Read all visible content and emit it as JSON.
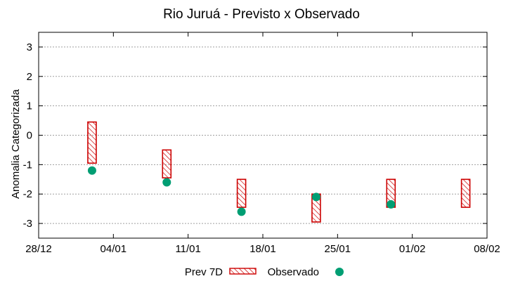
{
  "chart_data": {
    "type": "floating-bar-with-points",
    "title": "Rio Juruá - Previsto x Observado",
    "ylabel": "Anomalia Categorizada",
    "xlabel": "",
    "ylim": [
      -3.5,
      3.5
    ],
    "yticks": [
      -3,
      -2,
      -1,
      0,
      1,
      2,
      3
    ],
    "ytick_labels": [
      "-3",
      "-2",
      "-1",
      "0",
      "1",
      "2",
      "3"
    ],
    "xlim_days": [
      0,
      42
    ],
    "xticks_days": [
      0,
      7,
      14,
      21,
      28,
      35,
      42
    ],
    "xtick_labels": [
      "28/12",
      "04/01",
      "11/01",
      "18/01",
      "25/01",
      "01/02",
      "08/02"
    ],
    "grid": true,
    "legend_position": "bottom",
    "series": [
      {
        "name": "Prev 7D",
        "kind": "range-bar",
        "color": "#cc0000",
        "x_days": [
          5,
          12,
          19,
          26,
          33,
          40
        ],
        "low": [
          -0.95,
          -1.45,
          -2.45,
          -2.95,
          -2.45,
          -2.45
        ],
        "high": [
          0.45,
          -0.5,
          -1.5,
          -2.0,
          -1.5,
          -1.5
        ]
      },
      {
        "name": "Observado",
        "kind": "points",
        "color": "#009e73",
        "x_days": [
          5,
          12,
          19,
          26,
          33
        ],
        "values": [
          -1.2,
          -1.6,
          -2.6,
          -2.1,
          -2.35
        ]
      }
    ]
  }
}
